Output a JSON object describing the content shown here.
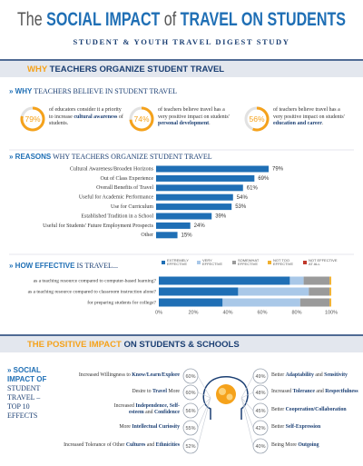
{
  "header": {
    "title_parts": [
      "The ",
      "SOCIAL IMPACT",
      " of ",
      "TRAVEL ON STUDENTS"
    ],
    "subtitle": "STUDENT & YOUTH TRAVEL DIGEST STUDY"
  },
  "section_1": {
    "title_parts": [
      "WHY",
      " TEACHERS ORGANIZE STUDENT TRAVEL"
    ]
  },
  "believe": {
    "heading_parts": [
      "» WHY",
      " TEACHERS BELIEVE IN STUDENT TRAVEL"
    ],
    "color": "#f5a21b",
    "stats": [
      {
        "value": 79,
        "value_label": "79%",
        "text_parts": [
          "of educators consider it a priority to increase ",
          "cultural awareness",
          " of students."
        ]
      },
      {
        "value": 74,
        "value_label": "74%",
        "text_parts": [
          "of teachers believe travel has a very positive impact on students' ",
          "personal development",
          "."
        ]
      },
      {
        "value": 56,
        "value_label": "56%",
        "text_parts": [
          "of teachers believe travel has a very positive impact on students' ",
          "education and career",
          "."
        ]
      }
    ]
  },
  "chart_data": [
    {
      "type": "bar",
      "orientation": "horizontal",
      "heading_parts": [
        "» REASONS",
        " WHY TEACHERS ORGANIZE STUDENT TRAVEL"
      ],
      "categories": [
        "Cultural Awareness/Broaden Horizons",
        "Out of Class Experience",
        "Overall Benefits of Travel",
        "Useful for Academic Performance",
        "Use for Curriculum",
        "Established Tradition in a School",
        "Useful for Students' Future Employment Prospects",
        "Other"
      ],
      "values": [
        79,
        69,
        61,
        54,
        53,
        39,
        24,
        15
      ],
      "value_labels": [
        "79%",
        "69%",
        "61%",
        "54%",
        "53%",
        "39%",
        "24%",
        "15%"
      ],
      "color": "#1f6fb5"
    },
    {
      "type": "stacked_bar",
      "orientation": "horizontal",
      "heading_parts": [
        "» HOW EFFECTIVE",
        " IS TRAVEL..."
      ],
      "categories": [
        "as a teaching resource compared to computer-based learning?",
        "as a teaching resource compared to classroom instruction alone?",
        "for preparing students for college?"
      ],
      "series": [
        {
          "name": "EXTREMELY EFFECTIVE",
          "color": "#1f6fb5",
          "values": [
            76,
            46,
            37
          ]
        },
        {
          "name": "VERY EFFECTIVE",
          "color": "#a9c8e8",
          "values": [
            8,
            41,
            45
          ]
        },
        {
          "name": "SOMEWHAT EFFECTIVE",
          "color": "#9a9a9a",
          "values": [
            15,
            12,
            17
          ]
        },
        {
          "name": "NOT TOO EFFECTIVE",
          "color": "#f0b030",
          "values": [
            1,
            1,
            1
          ]
        },
        {
          "name": "NOT EFFECTIVE AT ALL",
          "color": "#c0392b",
          "values": [
            0,
            0,
            0
          ]
        }
      ],
      "xlim": [
        0,
        100
      ],
      "xticks": [
        {
          "value": 0,
          "label": "0%"
        },
        {
          "value": 20,
          "label": "20%"
        },
        {
          "value": 40,
          "label": "40%"
        },
        {
          "value": 60,
          "label": "60%"
        },
        {
          "value": 80,
          "label": "80%"
        },
        {
          "value": 100,
          "label": "100%"
        }
      ],
      "grid": false
    }
  ],
  "section_2": {
    "title_parts": [
      "THE POSITIVE IMPACT",
      " ON STUDENTS & SCHOOLS"
    ]
  },
  "effects": {
    "heading_parts": [
      "» SOCIAL IMPACT OF",
      "STUDENT TRAVEL – TOP 10 EFFECTS"
    ],
    "left": [
      {
        "parts": [
          "Increased Willingness to ",
          "Know/Learn/Explore"
        ],
        "percent": "60%"
      },
      {
        "parts": [
          "Desire to ",
          "Travel",
          " More"
        ],
        "percent": "60%"
      },
      {
        "parts": [
          "Increased ",
          "Independence, Self-esteem",
          " and ",
          "Confidence"
        ],
        "percent": "56%"
      },
      {
        "parts": [
          "More ",
          "Intellectual Curiosity"
        ],
        "percent": "55%"
      },
      {
        "parts": [
          "Increased Tolerance of Other ",
          "Cultures",
          " and ",
          "Ethnicities"
        ],
        "percent": "52%"
      }
    ],
    "right": [
      {
        "parts": [
          "Better ",
          "Adaptability",
          " and ",
          "Sensitivity"
        ],
        "percent": "49%"
      },
      {
        "parts": [
          "Increased ",
          "Tolerance",
          " and ",
          "Respectfulness"
        ],
        "percent": "48%"
      },
      {
        "parts": [
          "Better ",
          "Cooperation/Collaboration"
        ],
        "percent": "45%"
      },
      {
        "parts": [
          "Better ",
          "Self-Expression"
        ],
        "percent": "42%"
      },
      {
        "parts": [
          "Being More ",
          "Outgoing"
        ],
        "percent": "40%"
      }
    ]
  }
}
